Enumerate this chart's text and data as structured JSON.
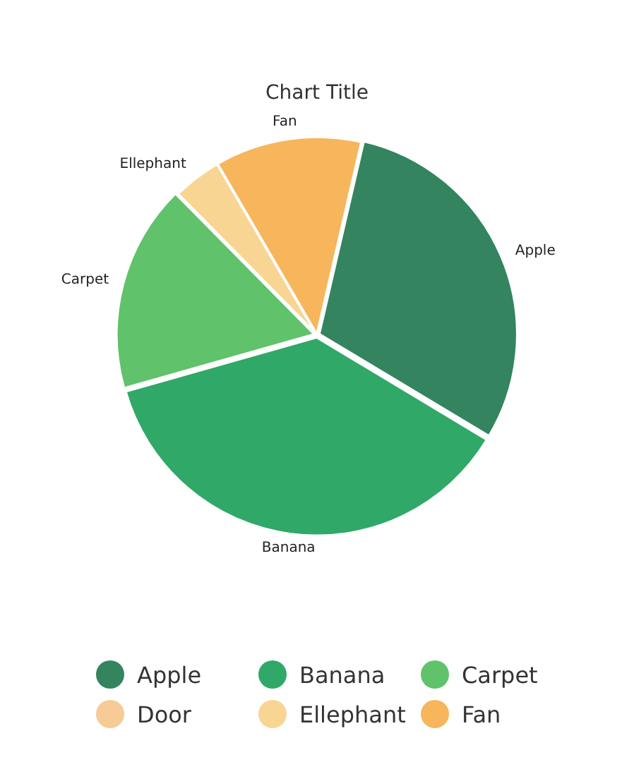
{
  "chart_data": {
    "type": "pie",
    "title": "Chart Title",
    "categories": [
      "Apple",
      "Banana",
      "Carpet",
      "Door",
      "Ellephant",
      "Fan"
    ],
    "values": [
      30,
      37,
      17,
      0,
      4,
      12
    ],
    "colors": [
      "#33845f",
      "#30a867",
      "#60c26b",
      "#f6cb95",
      "#f8d592",
      "#f7b55c"
    ],
    "legend": "bottom"
  }
}
